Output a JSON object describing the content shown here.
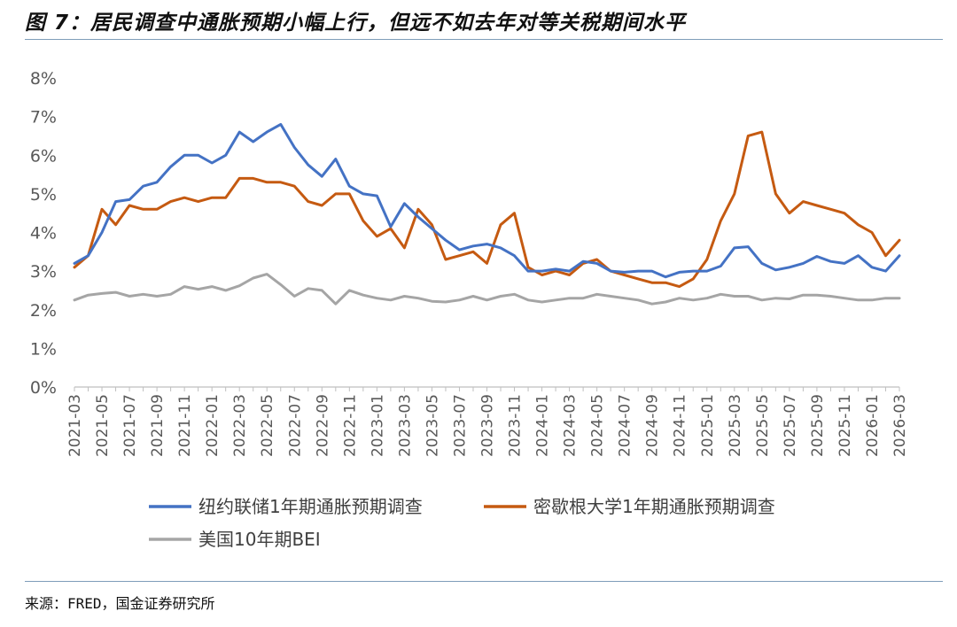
{
  "header": {
    "title": "图 7：居民调查中通胀预期小幅上行，但远不如去年对等关税期间水平"
  },
  "footer": {
    "source": "来源：FRED，国金证券研究所"
  },
  "chart_data": {
    "type": "line",
    "title": "图 7：居民调查中通胀预期小幅上行，但远不如去年对等关税期间水平",
    "xlabel": "",
    "ylabel": "",
    "ylim": [
      0,
      8
    ],
    "y_ticks": [
      "0%",
      "1%",
      "2%",
      "3%",
      "4%",
      "5%",
      "6%",
      "7%",
      "8%"
    ],
    "x": [
      "2021-03",
      "2021-04",
      "2021-05",
      "2021-06",
      "2021-07",
      "2021-08",
      "2021-09",
      "2021-10",
      "2021-11",
      "2021-12",
      "2022-01",
      "2022-02",
      "2022-03",
      "2022-04",
      "2022-05",
      "2022-06",
      "2022-07",
      "2022-08",
      "2022-09",
      "2022-10",
      "2022-11",
      "2022-12",
      "2023-01",
      "2023-02",
      "2023-03",
      "2023-04",
      "2023-05",
      "2023-06",
      "2023-07",
      "2023-08",
      "2023-09",
      "2023-10",
      "2023-11",
      "2023-12",
      "2024-01",
      "2024-02",
      "2024-03",
      "2024-04",
      "2024-05",
      "2024-06",
      "2024-07",
      "2024-08",
      "2024-09",
      "2024-10",
      "2024-11",
      "2024-12",
      "2025-01",
      "2025-02",
      "2025-03",
      "2025-04",
      "2025-05",
      "2025-06",
      "2025-07",
      "2025-08",
      "2025-09",
      "2025-10",
      "2025-11",
      "2025-12",
      "2026-01",
      "2026-02",
      "2026-03"
    ],
    "x_tick_labels": [
      "2021-03",
      "2021-05",
      "2021-07",
      "2021-09",
      "2021-11",
      "2022-01",
      "2022-03",
      "2022-05",
      "2022-07",
      "2022-09",
      "2022-11",
      "2023-01",
      "2023-03",
      "2023-05",
      "2023-07",
      "2023-09",
      "2023-11",
      "2024-01",
      "2024-03",
      "2024-05",
      "2024-07",
      "2024-09",
      "2024-11",
      "2025-01",
      "2025-03",
      "2025-05",
      "2025-07",
      "2025-09",
      "2025-11",
      "2026-01",
      "2026-03"
    ],
    "grid": false,
    "legend_position": "bottom",
    "series": [
      {
        "name": "纽约联储1年期通胀预期调查",
        "color": "#4472c4",
        "values": [
          3.2,
          3.4,
          4.0,
          4.8,
          4.85,
          5.2,
          5.3,
          5.7,
          6.0,
          6.0,
          5.8,
          6.0,
          6.6,
          6.35,
          6.6,
          6.8,
          6.2,
          5.75,
          5.45,
          5.9,
          5.2,
          5.0,
          4.95,
          4.15,
          4.75,
          4.4,
          4.1,
          3.8,
          3.55,
          3.65,
          3.7,
          3.6,
          3.4,
          3.0,
          3.0,
          3.05,
          3.0,
          3.25,
          3.2,
          3.0,
          2.97,
          3.0,
          3.0,
          2.85,
          2.97,
          3.0,
          3.0,
          3.13,
          3.6,
          3.63,
          3.2,
          3.03,
          3.1,
          3.2,
          3.38,
          3.25,
          3.2,
          3.4,
          3.1,
          3.0,
          3.4
        ]
      },
      {
        "name": "密歇根大学1年期通胀预期调查",
        "color": "#c55a11",
        "values": [
          3.1,
          3.4,
          4.6,
          4.2,
          4.7,
          4.6,
          4.6,
          4.8,
          4.9,
          4.8,
          4.9,
          4.9,
          5.4,
          5.4,
          5.3,
          5.3,
          5.2,
          4.8,
          4.7,
          5.0,
          5.0,
          4.3,
          3.9,
          4.1,
          3.6,
          4.6,
          4.2,
          3.3,
          3.4,
          3.5,
          3.2,
          4.2,
          4.5,
          3.1,
          2.9,
          3.0,
          2.9,
          3.2,
          3.3,
          3.0,
          2.9,
          2.8,
          2.7,
          2.7,
          2.6,
          2.8,
          3.3,
          4.3,
          5.0,
          6.5,
          6.6,
          5.0,
          4.5,
          4.8,
          4.7,
          4.6,
          4.5,
          4.2,
          4.0,
          3.4,
          3.8
        ]
      },
      {
        "name": "美国10年期BEI",
        "color": "#a5a5a5",
        "values": [
          2.25,
          2.38,
          2.42,
          2.45,
          2.35,
          2.4,
          2.35,
          2.4,
          2.6,
          2.53,
          2.6,
          2.5,
          2.62,
          2.82,
          2.92,
          2.65,
          2.35,
          2.55,
          2.5,
          2.15,
          2.5,
          2.38,
          2.3,
          2.25,
          2.35,
          2.3,
          2.22,
          2.2,
          2.25,
          2.35,
          2.25,
          2.35,
          2.4,
          2.25,
          2.2,
          2.25,
          2.3,
          2.3,
          2.4,
          2.35,
          2.3,
          2.25,
          2.15,
          2.2,
          2.3,
          2.25,
          2.3,
          2.4,
          2.35,
          2.35,
          2.25,
          2.3,
          2.28,
          2.38,
          2.38,
          2.35,
          2.3,
          2.25,
          2.25,
          2.3,
          2.3
        ]
      }
    ]
  }
}
